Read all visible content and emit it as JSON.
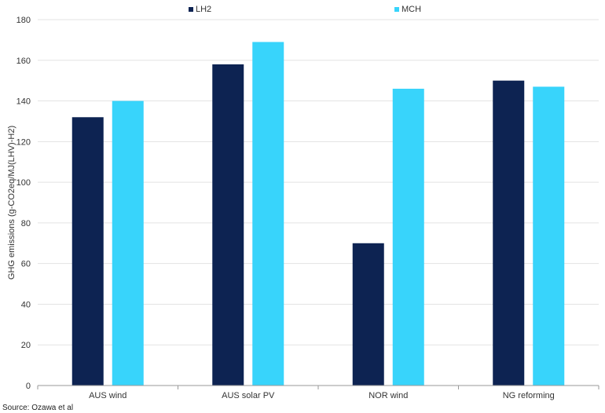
{
  "chart_data": {
    "type": "bar",
    "title": "",
    "xlabel": "",
    "ylabel": "GHG emissions (g-CO2eq/MJ(LHV)-H2)",
    "categories": [
      "AUS wind",
      "AUS solar PV",
      "NOR wind",
      "NG reforming"
    ],
    "series": [
      {
        "name": "LH2",
        "values": [
          132,
          158,
          70,
          150
        ],
        "color": "#0d2352"
      },
      {
        "name": "MCH",
        "values": [
          140,
          169,
          146,
          147
        ],
        "color": "#38d4fb"
      }
    ],
    "ylim": [
      0,
      180
    ],
    "yticks": [
      0,
      20,
      40,
      60,
      80,
      100,
      120,
      140,
      160,
      180
    ],
    "grid": true,
    "legend_position": "top"
  },
  "source_note": "Source: Ozawa et al"
}
